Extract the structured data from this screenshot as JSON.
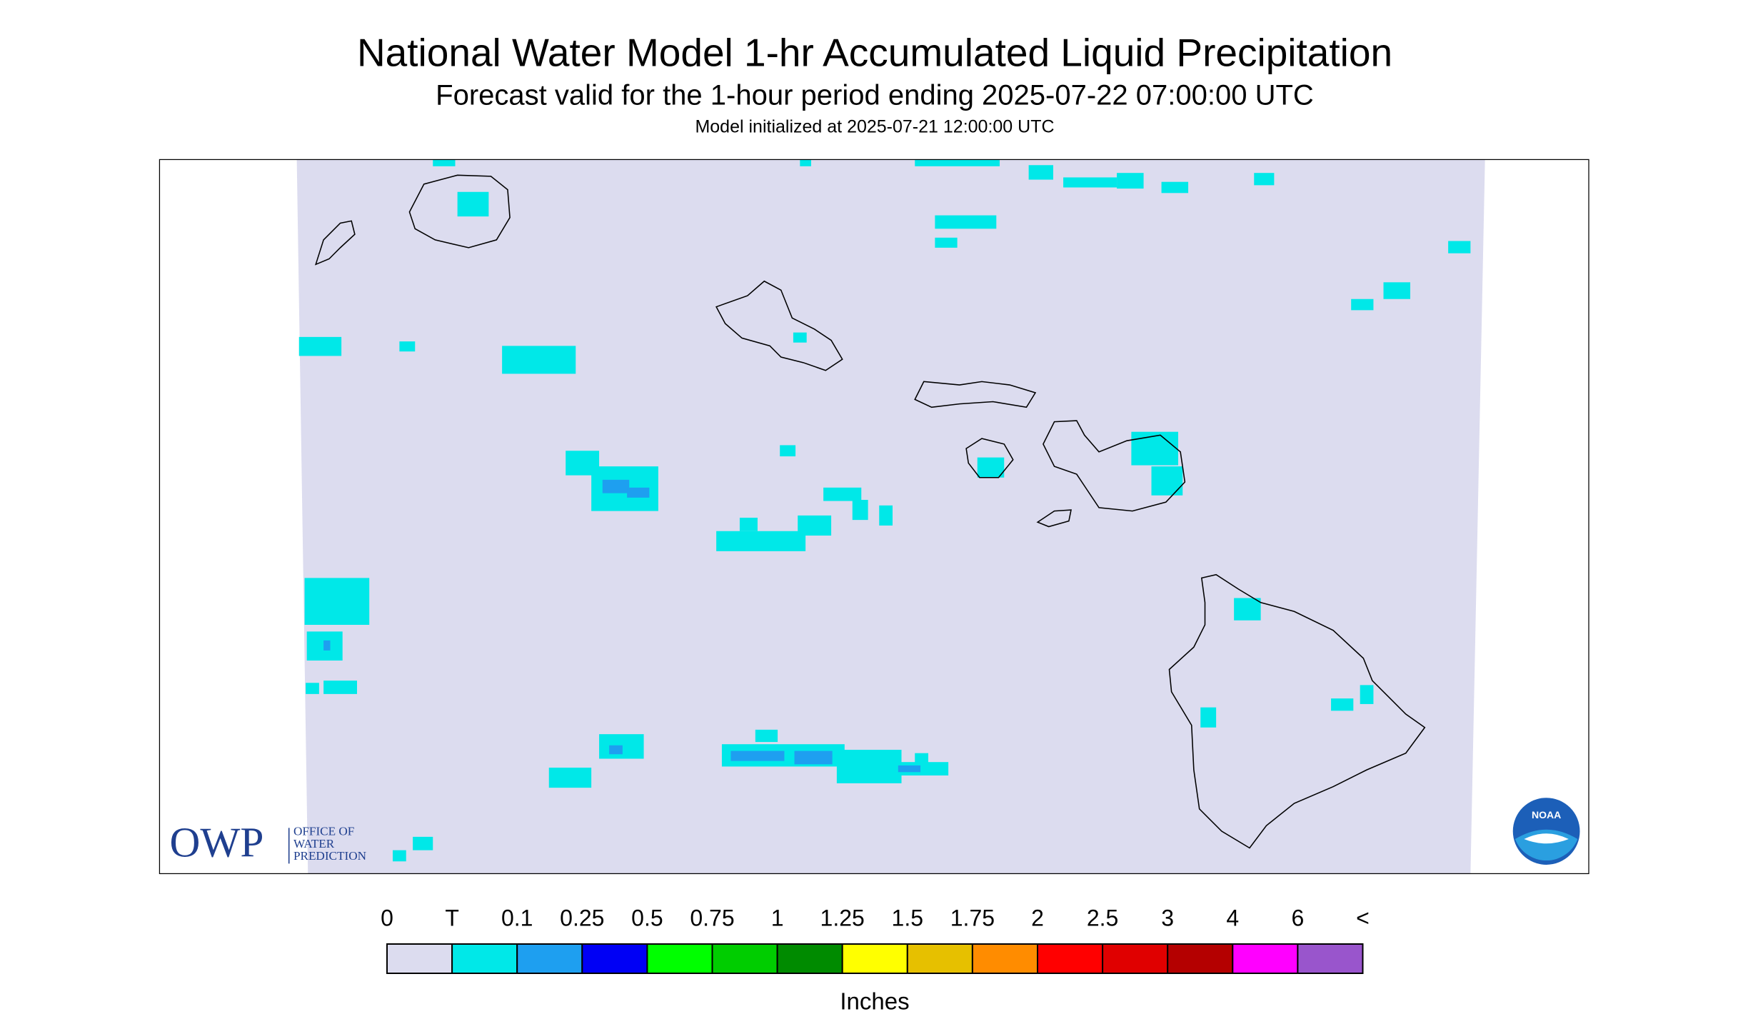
{
  "header": {
    "title": "National Water Model 1-hr Accumulated Liquid Precipitation",
    "subtitle": "Forecast valid for the 1-hour period ending 2025-07-22 07:00:00 UTC",
    "init": "Model initialized at 2025-07-21 12:00:00 UTC"
  },
  "logos": {
    "owp": "OWP",
    "owp_lines": [
      "OFFICE OF",
      "WATER",
      "PREDICTION"
    ],
    "noaa": "NOAA"
  },
  "legend": {
    "labels": [
      "0",
      "T",
      "0.1",
      "0.25",
      "0.5",
      "0.75",
      "1",
      "1.25",
      "1.5",
      "1.75",
      "2",
      "2.5",
      "3",
      "4",
      "6",
      "<"
    ],
    "colors": [
      "#dcdcef",
      "#00e8e8",
      "#1e9ff0",
      "#0000f5",
      "#00ff00",
      "#00cd00",
      "#008b00",
      "#ffff00",
      "#e6c000",
      "#ff8c00",
      "#ff0000",
      "#e00000",
      "#b40000",
      "#ff00ff",
      "#9955cc"
    ],
    "unit": "Inches"
  }
}
